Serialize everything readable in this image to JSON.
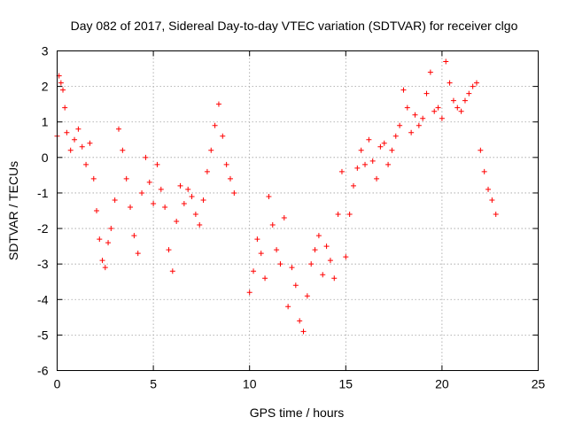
{
  "chart_data": {
    "type": "scatter",
    "title": "Day 082 of 2017, Sidereal Day-to-day VTEC variation (SDTVAR) for receiver clgo",
    "xlabel": "GPS time / hours",
    "ylabel": "SDTVAR / TECUs",
    "xlim": [
      0,
      25
    ],
    "ylim": [
      -6,
      3
    ],
    "xticks": [
      0,
      5,
      10,
      15,
      20,
      25
    ],
    "yticks": [
      -6,
      -5,
      -4,
      -3,
      -2,
      -1,
      0,
      1,
      2,
      3
    ],
    "grid": true,
    "marker": "plus",
    "series": [
      {
        "name": "SDTVAR",
        "color": "#ff0000",
        "x": [
          0.0,
          0.1,
          0.2,
          0.3,
          0.4,
          0.5,
          0.7,
          0.9,
          1.1,
          1.3,
          1.5,
          1.7,
          1.9,
          2.05,
          2.2,
          2.35,
          2.5,
          2.65,
          2.8,
          3.0,
          3.2,
          3.4,
          3.6,
          3.8,
          4.0,
          4.2,
          4.4,
          4.6,
          4.8,
          5.0,
          5.2,
          5.4,
          5.6,
          5.8,
          6.0,
          6.2,
          6.4,
          6.6,
          6.8,
          7.0,
          7.2,
          7.4,
          7.6,
          7.8,
          8.0,
          8.2,
          8.4,
          8.6,
          8.8,
          9.0,
          9.2,
          10.0,
          10.2,
          10.4,
          10.6,
          10.8,
          11.0,
          11.2,
          11.4,
          11.6,
          11.8,
          12.0,
          12.2,
          12.4,
          12.6,
          12.8,
          13.0,
          13.2,
          13.4,
          13.6,
          13.8,
          14.0,
          14.2,
          14.4,
          14.6,
          14.8,
          15.0,
          15.2,
          15.4,
          15.6,
          15.8,
          16.0,
          16.2,
          16.4,
          16.6,
          16.8,
          17.0,
          17.2,
          17.4,
          17.6,
          17.8,
          18.0,
          18.2,
          18.4,
          18.6,
          18.8,
          19.0,
          19.2,
          19.4,
          19.6,
          19.8,
          20.0,
          20.2,
          20.4,
          20.6,
          20.8,
          21.0,
          21.2,
          21.4,
          21.6,
          21.8,
          22.0,
          22.2,
          22.4,
          22.6,
          22.8
        ],
        "y": [
          0.6,
          2.3,
          2.1,
          1.9,
          1.4,
          0.7,
          0.2,
          0.5,
          0.8,
          0.3,
          -0.2,
          0.4,
          -0.6,
          -1.5,
          -2.3,
          -2.9,
          -3.1,
          -2.4,
          -2.0,
          -1.2,
          0.8,
          0.2,
          -0.6,
          -1.4,
          -2.2,
          -2.7,
          -1.0,
          0.0,
          -0.7,
          -1.3,
          -0.2,
          -0.9,
          -1.4,
          -2.6,
          -3.2,
          -1.8,
          -0.8,
          -1.3,
          -0.9,
          -1.1,
          -1.6,
          -1.9,
          -1.2,
          -0.4,
          0.2,
          0.9,
          1.5,
          0.6,
          -0.2,
          -0.6,
          -1.0,
          -3.8,
          -3.2,
          -2.3,
          -2.7,
          -3.4,
          -1.1,
          -1.9,
          -2.6,
          -3.0,
          -1.7,
          -4.2,
          -3.1,
          -3.6,
          -4.6,
          -4.9,
          -3.9,
          -3.0,
          -2.6,
          -2.2,
          -3.3,
          -2.5,
          -2.9,
          -3.4,
          -1.6,
          -0.4,
          -2.8,
          -1.6,
          -0.8,
          -0.3,
          0.2,
          -0.2,
          0.5,
          -0.1,
          -0.6,
          0.3,
          0.4,
          -0.2,
          0.2,
          0.6,
          0.9,
          1.9,
          1.4,
          0.7,
          1.2,
          0.9,
          1.1,
          1.8,
          2.4,
          1.3,
          1.4,
          1.1,
          2.7,
          2.1,
          1.6,
          1.4,
          1.3,
          1.6,
          1.8,
          2.0,
          2.1,
          0.2,
          -0.4,
          -0.9,
          -1.2,
          -1.6
        ]
      }
    ]
  }
}
